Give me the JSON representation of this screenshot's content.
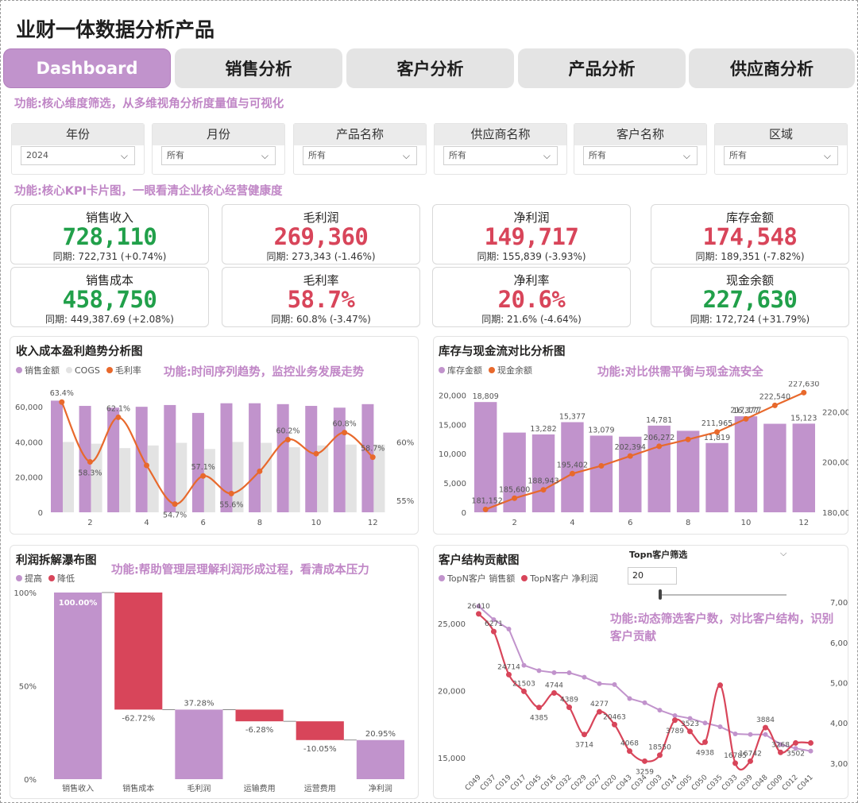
{
  "app_title": "业财一体数据分析产品",
  "tabs": [
    {
      "label": "Dashboard",
      "active": true
    },
    {
      "label": "销售分析"
    },
    {
      "label": "客户分析"
    },
    {
      "label": "产品分析"
    },
    {
      "label": "供应商分析"
    }
  ],
  "notes": {
    "filters": "功能:核心维度筛选，从多维视角分析度量值与可视化",
    "kpi": "功能:核心KPI卡片图，一眼看清企业核心经营健康度",
    "trend": "功能:时间序列趋势，监控业务发展走势",
    "inventory": "功能:对比供需平衡与现金流安全",
    "waterfall": "功能:帮助管理层理解利润形成过程，看清成本压力",
    "customer_line1": "功能:动态筛选客户数，对比客户结构，识别",
    "customer_line2": "客户贡献"
  },
  "slicers": [
    {
      "label": "年份",
      "value": "2024"
    },
    {
      "label": "月份",
      "value": "所有"
    },
    {
      "label": "产品名称",
      "value": "所有"
    },
    {
      "label": "供应商名称",
      "value": "所有"
    },
    {
      "label": "客户名称",
      "value": "所有"
    },
    {
      "label": "区域",
      "value": "所有"
    }
  ],
  "kpis": [
    {
      "label": "销售收入",
      "value": "728,110",
      "compare": "同期: 722,731 (+0.74%)",
      "color": "#21a04a"
    },
    {
      "label": "毛利润",
      "value": "269,360",
      "compare": "同期: 273,343 (-1.46%)",
      "color": "#d8455a"
    },
    {
      "label": "净利润",
      "value": "149,717",
      "compare": "同期: 155,839 (-3.93%)",
      "color": "#d8455a"
    },
    {
      "label": "库存金额",
      "value": "174,548",
      "compare": "同期: 189,351 (-7.82%)",
      "color": "#d8455a"
    },
    {
      "label": "销售成本",
      "value": "458,750",
      "compare": "同期: 449,387.69 (+2.08%)",
      "color": "#21a04a"
    },
    {
      "label": "毛利率",
      "value": "58.7%",
      "compare": "同期: 60.8% (-3.47%)",
      "color": "#d8455a"
    },
    {
      "label": "净利率",
      "value": "20.6%",
      "compare": "同期: 21.6% (-4.64%)",
      "color": "#d8455a"
    },
    {
      "label": "现金余额",
      "value": "227,630",
      "compare": "同期: 172,724 (+31.79%)",
      "color": "#21a04a"
    }
  ],
  "colors": {
    "purple": "#c193cc",
    "grey": "#e3e3e3",
    "orange": "#e8692c",
    "red": "#d8455a",
    "green": "#21a04a"
  },
  "chart_data": [
    {
      "type": "bar",
      "title": "收入成本盈利趋势分析图",
      "legend": [
        "销售金额",
        "COGS",
        "毛利率"
      ],
      "categories": [
        1,
        2,
        3,
        4,
        5,
        6,
        7,
        8,
        9,
        10,
        11,
        12
      ],
      "xticks": [
        "2",
        "4",
        "6",
        "8",
        "10",
        "12"
      ],
      "ylim": [
        0,
        70000
      ],
      "yticks": [
        "0",
        "20,000",
        "40,000",
        "60,000"
      ],
      "y2ticks": [
        "55%",
        "60%"
      ],
      "y2lim": [
        54,
        64.5
      ],
      "series": [
        {
          "name": "销售金额",
          "values": [
            63500,
            60500,
            59500,
            60000,
            61000,
            56500,
            62000,
            62000,
            61500,
            60500,
            59500,
            61500
          ]
        },
        {
          "name": "COGS",
          "values": [
            40000,
            39000,
            36500,
            38000,
            39500,
            36000,
            40000,
            39500,
            37000,
            38000,
            38500,
            38500
          ]
        },
        {
          "name": "毛利率",
          "values": [
            63.4,
            58.3,
            62.1,
            58.0,
            54.7,
            57.1,
            55.6,
            57.5,
            60.2,
            59.0,
            60.8,
            58.7
          ],
          "labels": [
            "63.4%",
            "58.3%",
            "62.1%",
            "",
            "54.7%",
            "57.1%",
            "55.6%",
            "",
            "60.2%",
            "",
            "60.8%",
            "58.7%"
          ]
        }
      ]
    },
    {
      "type": "bar",
      "title": "库存与现金流对比分析图",
      "legend": [
        "库存金额",
        "现金余额"
      ],
      "categories": [
        1,
        2,
        3,
        4,
        5,
        6,
        7,
        8,
        9,
        10,
        11,
        12
      ],
      "xticks": [
        "2",
        "4",
        "6",
        "8",
        "10",
        "12"
      ],
      "ylim": [
        0,
        21000
      ],
      "yticks": [
        "0",
        "5,000",
        "10,000",
        "15,000",
        "20,000"
      ],
      "y2lim": [
        180000,
        229000
      ],
      "y2ticks": [
        "180,000",
        "200,000",
        "220,000"
      ],
      "series": [
        {
          "name": "库存金额",
          "values": [
            18809,
            13600,
            13282,
            15377,
            13079,
            12900,
            14781,
            13900,
            11819,
            16377,
            15100,
            15123
          ],
          "labels": [
            "18,809",
            "",
            "13,282",
            "15,377",
            "13,079",
            "",
            "14,781",
            "",
            "11,819",
            "16,377",
            "",
            "15,123"
          ]
        },
        {
          "name": "现金余额",
          "values": [
            181152,
            185600,
            188943,
            195402,
            198500,
            202394,
            206272,
            209000,
            211965,
            217177,
            222540,
            227630
          ],
          "labels": [
            "181,152",
            "185,600",
            "188,943",
            "195,402",
            "",
            "202,394",
            "206,272",
            "",
            "211,965",
            "217,177",
            "222,540",
            "227,630"
          ]
        }
      ]
    },
    {
      "type": "bar",
      "title": "利润拆解瀑布图",
      "legend": [
        "提高",
        "降低"
      ],
      "categories": [
        "销售收入",
        "销售成本",
        "毛利润",
        "运输费用",
        "运营费用",
        "净利润"
      ],
      "yticks": [
        "0%",
        "50%",
        "100%"
      ],
      "steps": [
        {
          "from": 0,
          "to": 100.0,
          "label": "100.00%",
          "kind": "up"
        },
        {
          "from": 100.0,
          "to": 37.28,
          "label": "-62.72%",
          "kind": "down"
        },
        {
          "from": 0,
          "to": 37.28,
          "label": "37.28%",
          "kind": "up"
        },
        {
          "from": 37.28,
          "to": 31.0,
          "label": "-6.28%",
          "kind": "down"
        },
        {
          "from": 31.0,
          "to": 20.95,
          "label": "-10.05%",
          "kind": "down"
        },
        {
          "from": 0,
          "to": 20.95,
          "label": "20.95%",
          "kind": "up"
        }
      ]
    },
    {
      "type": "line",
      "title": "客户结构贡献图",
      "legend": [
        "TopN客户 销售额",
        "TopN客户 净利润"
      ],
      "categories": [
        "C049",
        "C037",
        "C019",
        "C017",
        "C045",
        "C016",
        "C032",
        "C029",
        "C027",
        "C020",
        "C043",
        "C034",
        "C003",
        "C014",
        "C005",
        "C050",
        "C035",
        "C033",
        "C039",
        "C048",
        "C009",
        "C012",
        "C041"
      ],
      "ylim": [
        14000,
        27500
      ],
      "yticks": [
        "15,000",
        "20,000",
        "25,000"
      ],
      "y2lim": [
        2800,
        7300
      ],
      "y2ticks": [
        "3,000",
        "4,000",
        "5,000",
        "6,000",
        "7,000"
      ],
      "series": [
        {
          "name": "TopN客户 销售额",
          "values": [
            26300,
            25300,
            24600,
            21900,
            21500,
            21352,
            21340,
            21010,
            20525,
            20463,
            19419,
            19106,
            18550,
            18147,
            17941,
            17600,
            17319,
            16785,
            16742,
            16739,
            15994,
            15700,
            15500
          ]
        },
        {
          "name": "TopN客户 净利润",
          "values": [
            6710,
            6271,
            5200,
            4785,
            4385,
            4744,
            4389,
            3714,
            4277,
            3959,
            3300,
            3050,
            3200,
            4068,
            3789,
            3523,
            4938,
            3000,
            3050,
            3884,
            3268,
            3502,
            3502
          ],
          "labels": [
            "26410",
            "6271",
            "24714",
            "21503",
            "4385",
            "4744",
            "4389",
            "3714",
            "4277",
            "20463",
            "4068",
            "3259",
            "18550",
            "3789",
            "3523",
            "4938",
            "",
            "16785",
            "16742",
            "3884",
            "3268",
            "3502",
            ""
          ]
        }
      ],
      "topn": {
        "label": "Topn客户筛选",
        "value": "20"
      }
    }
  ]
}
